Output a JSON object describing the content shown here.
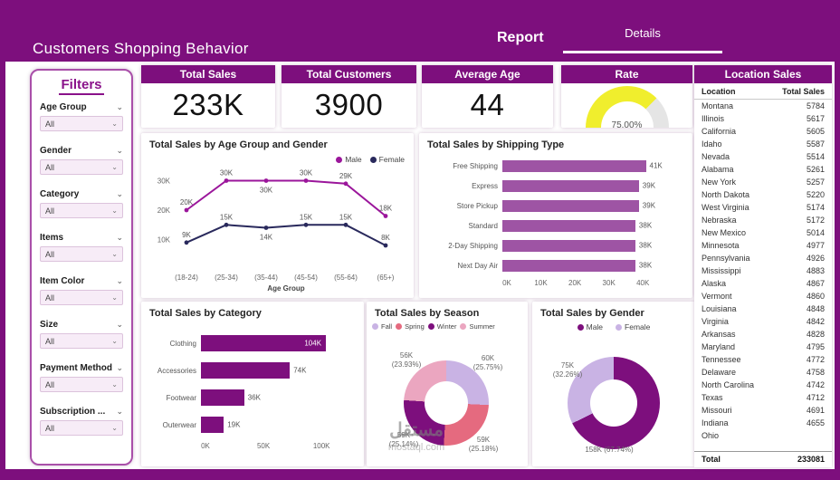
{
  "header": {
    "title": "Customers Shopping Behavior",
    "tabs": [
      {
        "label": "Report",
        "active": false
      },
      {
        "label": "Details",
        "active": true
      }
    ]
  },
  "filters": {
    "title": "Filters",
    "items": [
      {
        "label": "Age Group",
        "value": "All"
      },
      {
        "label": "Gender",
        "value": "All"
      },
      {
        "label": "Category",
        "value": "All"
      },
      {
        "label": "Items",
        "value": "All"
      },
      {
        "label": "Item Color",
        "value": "All"
      },
      {
        "label": "Size",
        "value": "All"
      },
      {
        "label": "Payment Method",
        "value": "All"
      },
      {
        "label": "Subscription ...",
        "value": "All"
      }
    ]
  },
  "kpis": {
    "cards": [
      {
        "title": "Total Sales",
        "value": "233K"
      },
      {
        "title": "Total Customers",
        "value": "3900"
      },
      {
        "title": "Average Age",
        "value": "44"
      }
    ],
    "gauge": {
      "title": "Rate",
      "percent": 75,
      "value_label": "75.00%",
      "fill_color": "#F0EE2D",
      "track_color": "#E5E5E5"
    }
  },
  "location_sales": {
    "title": "Location Sales",
    "columns": [
      "Location",
      "Total Sales"
    ],
    "rows": [
      [
        "Montana",
        "5784"
      ],
      [
        "Illinois",
        "5617"
      ],
      [
        "California",
        "5605"
      ],
      [
        "Idaho",
        "5587"
      ],
      [
        "Nevada",
        "5514"
      ],
      [
        "Alabama",
        "5261"
      ],
      [
        "New York",
        "5257"
      ],
      [
        "North Dakota",
        "5220"
      ],
      [
        "West Virginia",
        "5174"
      ],
      [
        "Nebraska",
        "5172"
      ],
      [
        "New Mexico",
        "5014"
      ],
      [
        "Minnesota",
        "4977"
      ],
      [
        "Pennsylvania",
        "4926"
      ],
      [
        "Mississippi",
        "4883"
      ],
      [
        "Alaska",
        "4867"
      ],
      [
        "Vermont",
        "4860"
      ],
      [
        "Louisiana",
        "4848"
      ],
      [
        "Virginia",
        "4842"
      ],
      [
        "Arkansas",
        "4828"
      ],
      [
        "Maryland",
        "4795"
      ],
      [
        "Tennessee",
        "4772"
      ],
      [
        "Delaware",
        "4758"
      ],
      [
        "North Carolina",
        "4742"
      ],
      [
        "Texas",
        "4712"
      ],
      [
        "Missouri",
        "4691"
      ],
      [
        "Indiana",
        "4655"
      ],
      [
        "Ohio",
        ""
      ]
    ],
    "total_label": "Total",
    "total_value": "233081"
  },
  "watermark": {
    "line1": "مستقل",
    "line2": "mostaql.com"
  },
  "colors": {
    "primary": "#7D0F7D",
    "bar_light_purple": "#9E54A4",
    "male": "#9B169B",
    "female": "#29295C",
    "gauge_yellow": "#F0EE2D"
  },
  "chart_data": [
    {
      "type": "line",
      "title": "Total Sales by Age Group and Gender",
      "categories": [
        "(18-24)",
        "(25-34)",
        "(35-44)",
        "(45-54)",
        "(55-64)",
        "(65+)"
      ],
      "xlabel": "Age Group",
      "ylim": [
        0,
        32000
      ],
      "yticks": [
        {
          "label": "10K",
          "value": 10000
        },
        {
          "label": "20K",
          "value": 20000
        },
        {
          "label": "30K",
          "value": 30000
        }
      ],
      "legend_position": "top-right",
      "grid": false,
      "series": [
        {
          "name": "Male",
          "color": "#9B169B",
          "values": [
            20000,
            30000,
            30000,
            30000,
            29000,
            18000
          ],
          "labels": [
            "20K",
            "30K",
            "30K",
            "30K",
            "29K",
            "18K"
          ],
          "label_below": [
            false,
            false,
            true,
            false,
            false,
            false
          ]
        },
        {
          "name": "Female",
          "color": "#29295C",
          "values": [
            9000,
            15000,
            14000,
            15000,
            15000,
            8000
          ],
          "labels": [
            "9K",
            "15K",
            "14K",
            "15K",
            "15K",
            "8K"
          ],
          "label_below": [
            false,
            false,
            true,
            false,
            false,
            false
          ]
        }
      ]
    },
    {
      "type": "bar",
      "orientation": "horizontal",
      "title": "Total Sales by Shipping Type",
      "bar_color": "#9E54A4",
      "xmax": 45000,
      "xticks": [
        {
          "label": "0K",
          "value": 0
        },
        {
          "label": "10K",
          "value": 10000
        },
        {
          "label": "20K",
          "value": 20000
        },
        {
          "label": "30K",
          "value": 30000
        },
        {
          "label": "40K",
          "value": 40000
        }
      ],
      "bars": [
        {
          "name": "Free Shipping",
          "value": 41000,
          "label": "41K",
          "inside": false
        },
        {
          "name": "Express",
          "value": 39000,
          "label": "39K",
          "inside": false
        },
        {
          "name": "Store Pickup",
          "value": 39000,
          "label": "39K",
          "inside": false
        },
        {
          "name": "Standard",
          "value": 38000,
          "label": "38K",
          "inside": false
        },
        {
          "name": "2-Day Shipping",
          "value": 38000,
          "label": "38K",
          "inside": false
        },
        {
          "name": "Next Day Air",
          "value": 38000,
          "label": "38K",
          "inside": false
        }
      ]
    },
    {
      "type": "bar",
      "orientation": "horizontal",
      "title": "Total Sales by Category",
      "bar_color": "#7D0F7D",
      "xmax": 110000,
      "xticks": [
        {
          "label": "0K",
          "value": 0
        },
        {
          "label": "50K",
          "value": 50000
        },
        {
          "label": "100K",
          "value": 100000
        }
      ],
      "bars": [
        {
          "name": "Clothing",
          "value": 104000,
          "label": "104K",
          "inside": true
        },
        {
          "name": "Accessories",
          "value": 74000,
          "label": "74K",
          "inside": false
        },
        {
          "name": "Footwear",
          "value": 36000,
          "label": "36K",
          "inside": false
        },
        {
          "name": "Outerwear",
          "value": 19000,
          "label": "19K",
          "inside": false
        }
      ]
    },
    {
      "type": "pie",
      "donut": true,
      "title": "Total Sales by Season",
      "legend_order": [
        "Fall",
        "Spring",
        "Winter",
        "Summer"
      ],
      "slices": [
        {
          "name": "Fall",
          "value": 60000,
          "pct": 25.75,
          "label_value": "60K",
          "label_pct": "(25.75%)",
          "color": "#C9B3E4",
          "label_angle": 46,
          "label_r": 64
        },
        {
          "name": "Spring",
          "value": 59000,
          "pct": 25.18,
          "label_value": "59K",
          "label_pct": "(25.18%)",
          "color": "#E56A7F",
          "label_angle": 138,
          "label_r": 62
        },
        {
          "name": "Winter",
          "value": 59000,
          "pct": 25.14,
          "label_value": "59K",
          "label_pct": "(25.14%)",
          "color": "#7D0F7D",
          "label_angle": 229,
          "label_r": 62
        },
        {
          "name": "Summer",
          "value": 56000,
          "pct": 23.93,
          "label_value": "56K",
          "label_pct": "(23.93%)",
          "color": "#EBA6C0",
          "label_angle": 317,
          "label_r": 64
        }
      ]
    },
    {
      "type": "pie",
      "donut": true,
      "title": "Total Sales by Gender",
      "legend_order": [
        "Male",
        "Female"
      ],
      "slices": [
        {
          "name": "Male",
          "value": 158000,
          "pct": 67.74,
          "label_value": "158K (67.74%)",
          "label_pct": "",
          "color": "#7D0F7D",
          "label_angle": 186,
          "label_r": 52
        },
        {
          "name": "Female",
          "value": 75000,
          "pct": 32.26,
          "label_value": "75K",
          "label_pct": "(32.26%)",
          "color": "#C9B3E4",
          "label_angle": 305,
          "label_r": 62
        }
      ]
    }
  ]
}
